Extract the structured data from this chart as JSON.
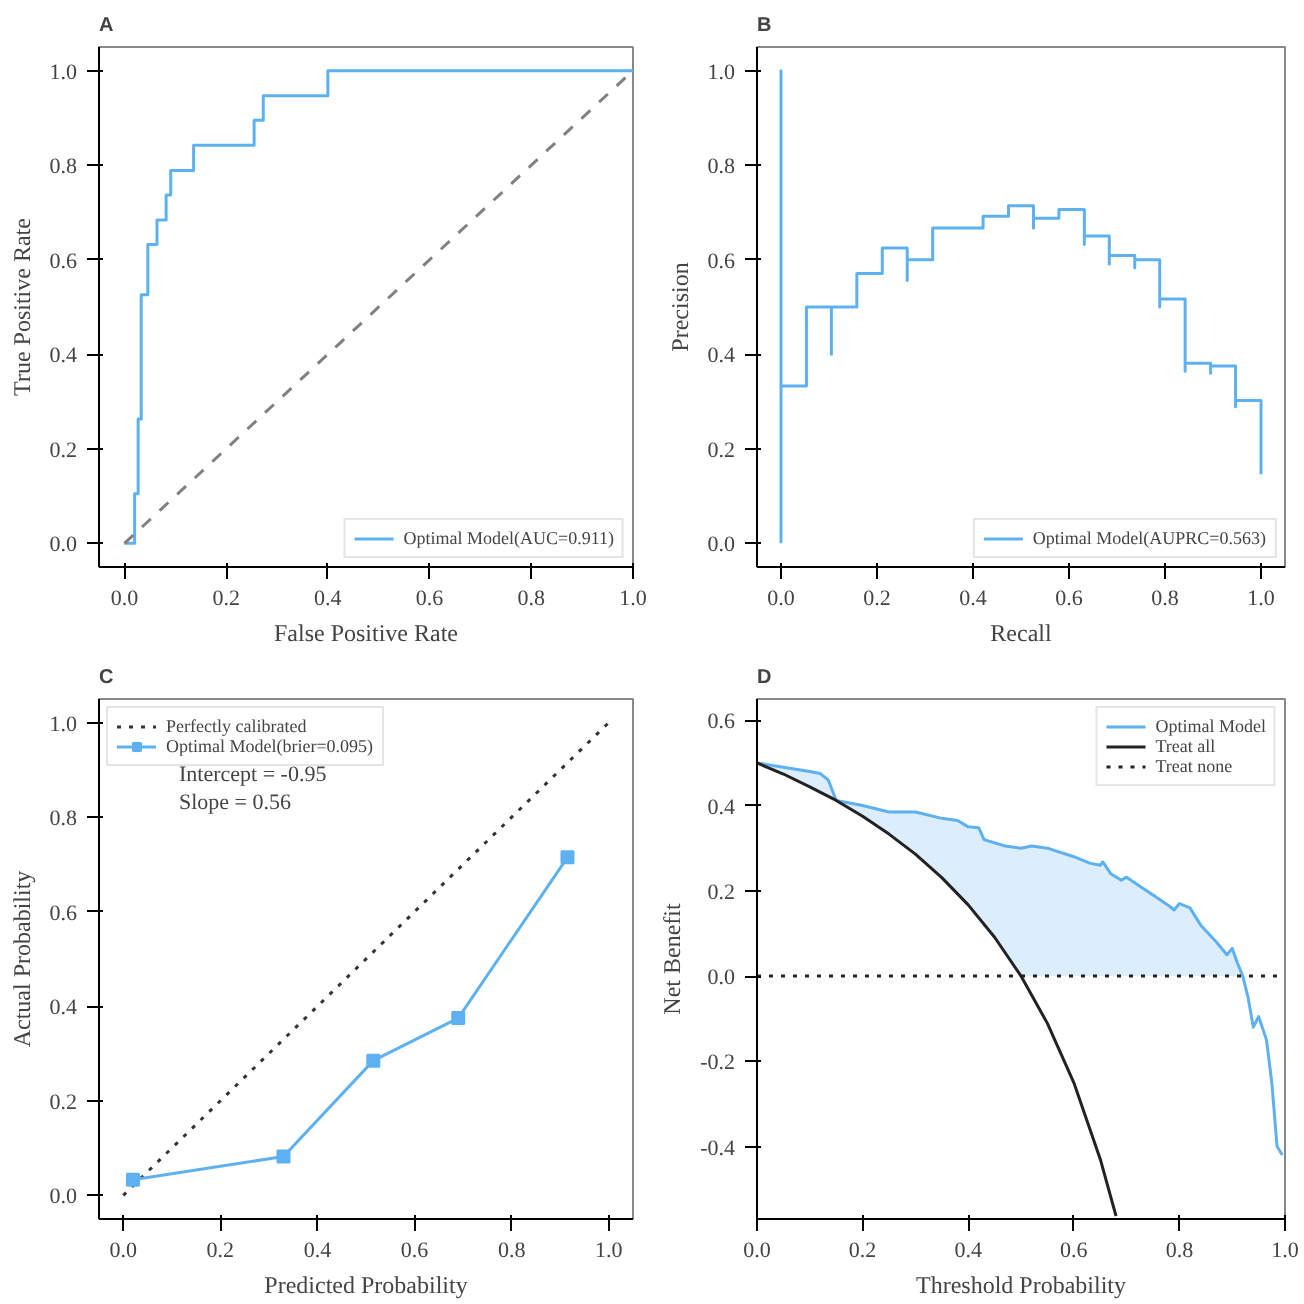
{
  "chart_data": [
    {
      "type": "line",
      "title": "A",
      "xlabel": "False Positive Rate",
      "ylabel": "True Positive Rate",
      "xlim": [
        -0.05,
        1.0
      ],
      "ylim": [
        -0.05,
        1.05
      ],
      "xticks": [
        {
          "value": 0,
          "label": "0.0"
        },
        {
          "value": 0.2,
          "label": "0.2"
        },
        {
          "value": 0.4,
          "label": "0.4"
        },
        {
          "value": 0.6,
          "label": "0.6"
        },
        {
          "value": 0.8,
          "label": "0.8"
        },
        {
          "value": 1,
          "label": "1.0"
        }
      ],
      "yticks": [
        {
          "value": 0,
          "label": "0.0"
        },
        {
          "value": 0.2,
          "label": "0.2"
        },
        {
          "value": 0.4,
          "label": "0.4"
        },
        {
          "value": 0.6,
          "label": "0.6"
        },
        {
          "value": 0.8,
          "label": "0.8"
        },
        {
          "value": 1,
          "label": "1.0"
        }
      ],
      "grid": false,
      "legend": "bottom right",
      "series": [
        {
          "name": "Optimal Model(AUC=0.911)",
          "color": "#5eb1f0",
          "line_style": "solid",
          "x": [
            0,
            0.02,
            0.02,
            0.027,
            0.027,
            0.033,
            0.033,
            0.046,
            0.046,
            0.064,
            0.064,
            0.082,
            0.082,
            0.091,
            0.091,
            0.136,
            0.136,
            0.255,
            0.255,
            0.273,
            0.273,
            0.4,
            0.4,
            1.0
          ],
          "values": [
            0,
            0,
            0.105,
            0.105,
            0.263,
            0.263,
            0.526,
            0.526,
            0.632,
            0.632,
            0.684,
            0.684,
            0.737,
            0.737,
            0.789,
            0.789,
            0.842,
            0.842,
            0.895,
            0.895,
            0.947,
            0.947,
            1.0,
            1.0
          ]
        },
        {
          "color": "#808080",
          "line_style": "dashed",
          "x": [
            0,
            1
          ],
          "values": [
            0,
            1
          ]
        }
      ]
    },
    {
      "type": "line",
      "title": "B",
      "xlabel": "Recall",
      "ylabel": "Precision",
      "xlim": [
        -0.05,
        1.05
      ],
      "ylim": [
        -0.05,
        1.05
      ],
      "xticks": [
        {
          "value": 0,
          "label": "0.0"
        },
        {
          "value": 0.2,
          "label": "0.2"
        },
        {
          "value": 0.4,
          "label": "0.4"
        },
        {
          "value": 0.6,
          "label": "0.6"
        },
        {
          "value": 0.8,
          "label": "0.8"
        },
        {
          "value": 1,
          "label": "1.0"
        }
      ],
      "yticks": [
        {
          "value": 0,
          "label": "0.0"
        },
        {
          "value": 0.2,
          "label": "0.2"
        },
        {
          "value": 0.4,
          "label": "0.4"
        },
        {
          "value": 0.6,
          "label": "0.6"
        },
        {
          "value": 0.8,
          "label": "0.8"
        },
        {
          "value": 1,
          "label": "1.0"
        }
      ],
      "grid": false,
      "legend": "bottom right",
      "series": [
        {
          "name": "Optimal Model(AUPRC=0.563)",
          "color": "#5eb1f0",
          "line_style": "solid",
          "x": [
            0,
            0,
            0,
            0.053,
            0.053,
            0.105,
            0.105,
            0.105,
            0.158,
            0.158,
            0.211,
            0.211,
            0.263,
            0.263,
            0.263,
            0.316,
            0.316,
            0.421,
            0.421,
            0.474,
            0.474,
            0.526,
            0.526,
            0.526,
            0.579,
            0.579,
            0.632,
            0.632,
            0.632,
            0.684,
            0.684,
            0.684,
            0.737,
            0.737,
            0.737,
            0.789,
            0.789,
            0.789,
            0.842,
            0.842,
            0.842,
            0.895,
            0.895,
            0.895,
            0.947,
            0.947,
            0.947,
            1.0,
            1.0
          ],
          "values": [
            0,
            1.0,
            0.333,
            0.333,
            0.5,
            0.5,
            0.4,
            0.5,
            0.5,
            0.571,
            0.571,
            0.625,
            0.625,
            0.556,
            0.6,
            0.6,
            0.667,
            0.667,
            0.692,
            0.692,
            0.714,
            0.714,
            0.667,
            0.688,
            0.688,
            0.706,
            0.706,
            0.632,
            0.65,
            0.65,
            0.591,
            0.609,
            0.609,
            0.583,
            0.6,
            0.6,
            0.5,
            0.517,
            0.517,
            0.364,
            0.381,
            0.381,
            0.36,
            0.375,
            0.375,
            0.289,
            0.302,
            0.302,
            0.146
          ]
        }
      ]
    },
    {
      "type": "line",
      "title": "C",
      "xlabel": "Predicted Probability",
      "ylabel": "Actual Probability",
      "xlim": [
        -0.05,
        1.05
      ],
      "ylim": [
        -0.05,
        1.05
      ],
      "xticks": [
        {
          "value": 0,
          "label": "0.0"
        },
        {
          "value": 0.2,
          "label": "0.2"
        },
        {
          "value": 0.4,
          "label": "0.4"
        },
        {
          "value": 0.6,
          "label": "0.6"
        },
        {
          "value": 0.8,
          "label": "0.8"
        },
        {
          "value": 1,
          "label": "1.0"
        }
      ],
      "yticks": [
        {
          "value": 0,
          "label": "0.0"
        },
        {
          "value": 0.2,
          "label": "0.2"
        },
        {
          "value": 0.4,
          "label": "0.4"
        },
        {
          "value": 0.6,
          "label": "0.6"
        },
        {
          "value": 0.8,
          "label": "0.8"
        },
        {
          "value": 1,
          "label": "1.0"
        }
      ],
      "grid": false,
      "legend": "top left",
      "annotations": [
        "Intercept = -0.95",
        "Slope = 0.56"
      ],
      "series": [
        {
          "name": "Perfectly calibrated",
          "color": "#333333",
          "line_style": "dotted",
          "x": [
            0,
            1
          ],
          "values": [
            0,
            1
          ]
        },
        {
          "name": "Optimal Model(brier=0.095)",
          "color": "#5eb1f0",
          "line_style": "solid",
          "marker": "square",
          "x": [
            0.02,
            0.33,
            0.515,
            0.69,
            0.915
          ],
          "values": [
            0.033,
            0.082,
            0.285,
            0.375,
            0.715
          ]
        }
      ]
    },
    {
      "type": "line",
      "title": "D",
      "xlabel": "Threshold Probability",
      "ylabel": "Net Benefit",
      "xlim": [
        0,
        1
      ],
      "ylim": [
        -0.57,
        0.65
      ],
      "xticks": [
        {
          "value": 0,
          "label": "0.0"
        },
        {
          "value": 0.2,
          "label": "0.2"
        },
        {
          "value": 0.4,
          "label": "0.4"
        },
        {
          "value": 0.6,
          "label": "0.6"
        },
        {
          "value": 0.8,
          "label": "0.8"
        },
        {
          "value": 1,
          "label": "1.0"
        }
      ],
      "yticks": [
        {
          "value": -0.4,
          "label": "-0.4"
        },
        {
          "value": -0.2,
          "label": "-0.2"
        },
        {
          "value": 0,
          "label": "0.0"
        },
        {
          "value": 0.2,
          "label": "0.2"
        },
        {
          "value": 0.4,
          "label": "0.4"
        },
        {
          "value": 0.6,
          "label": "0.6"
        }
      ],
      "grid": false,
      "legend": "top right",
      "series": [
        {
          "name": "Optimal Model",
          "color": "#5eb1f0",
          "line_style": "solid",
          "x": [
            0,
            0.05,
            0.1,
            0.12,
            0.135,
            0.15,
            0.2,
            0.25,
            0.3,
            0.35,
            0.38,
            0.4,
            0.42,
            0.43,
            0.47,
            0.5,
            0.52,
            0.55,
            0.6,
            0.63,
            0.65,
            0.655,
            0.67,
            0.69,
            0.7,
            0.72,
            0.75,
            0.78,
            0.79,
            0.8,
            0.82,
            0.84,
            0.87,
            0.89,
            0.9,
            0.91,
            0.92,
            0.93,
            0.94,
            0.95,
            0.965,
            0.975,
            0.985,
            0.995
          ],
          "values": [
            0.5,
            0.49,
            0.48,
            0.475,
            0.46,
            0.412,
            0.4,
            0.385,
            0.385,
            0.37,
            0.365,
            0.35,
            0.348,
            0.32,
            0.305,
            0.3,
            0.305,
            0.3,
            0.28,
            0.265,
            0.26,
            0.268,
            0.24,
            0.225,
            0.232,
            0.215,
            0.19,
            0.165,
            0.155,
            0.17,
            0.16,
            0.12,
            0.08,
            0.05,
            0.065,
            0.03,
            0.0,
            -0.05,
            -0.12,
            -0.095,
            -0.15,
            -0.25,
            -0.4,
            -0.42
          ],
          "lower": [
            0.5,
            0.474,
            0.444,
            0.432,
            0.422,
            0.412,
            0.375,
            0.333,
            0.286,
            0.231,
            0.194,
            0.167,
            0.138,
            0.123,
            0.057,
            0,
            0,
            0,
            0,
            0,
            0,
            0,
            0,
            0,
            0,
            0,
            0,
            0,
            0,
            0,
            0,
            0,
            0,
            0,
            0,
            0,
            0,
            null,
            null,
            null,
            null,
            null,
            null,
            null
          ],
          "upper": [
            0.5,
            0.49,
            0.48,
            0.475,
            0.46,
            0.412,
            0.4,
            0.385,
            0.385,
            0.37,
            0.365,
            0.35,
            0.348,
            0.32,
            0.305,
            0.3,
            0.305,
            0.3,
            0.28,
            0.265,
            0.26,
            0.268,
            0.24,
            0.225,
            0.232,
            0.215,
            0.19,
            0.165,
            0.155,
            0.17,
            0.16,
            0.12,
            0.08,
            0.05,
            0.065,
            0.03,
            0.0,
            null,
            null,
            null,
            null,
            null,
            null,
            null
          ]
        },
        {
          "name": "Treat all",
          "color": "#222222",
          "line_style": "solid",
          "x": [
            0,
            0.05,
            0.1,
            0.15,
            0.2,
            0.25,
            0.3,
            0.35,
            0.4,
            0.45,
            0.5,
            0.55,
            0.6,
            0.65,
            0.68
          ],
          "values": [
            0.5,
            0.474,
            0.444,
            0.412,
            0.375,
            0.333,
            0.286,
            0.231,
            0.167,
            0.091,
            0,
            -0.111,
            -0.25,
            -0.429,
            -0.563
          ]
        },
        {
          "name": "Treat none",
          "color": "#222222",
          "line_style": "dotted",
          "x": [
            0,
            1
          ],
          "values": [
            0,
            0
          ]
        }
      ]
    }
  ]
}
